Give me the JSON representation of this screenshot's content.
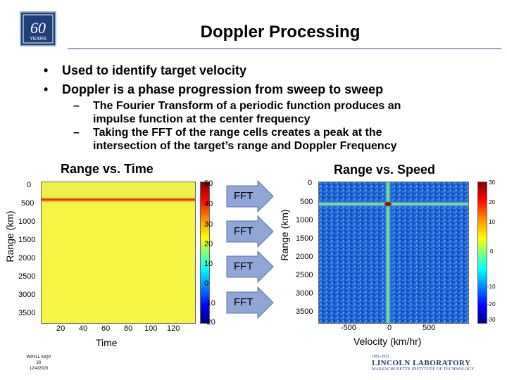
{
  "header": {
    "logo_text": "60",
    "logo_sub": "YEARS",
    "title": "Doppler Processing"
  },
  "bullets": [
    {
      "text": "Used to identify target velocity"
    },
    {
      "text": "Doppler is a phase progression from sweep to sweep"
    }
  ],
  "subbullets": [
    {
      "line1": "The Fourier Transform of a periodic function produces an",
      "line2": "impulse function at the center frequency"
    },
    {
      "line1": "Taking the FFT of the range cells creates a peak at the",
      "line2": "intersection of the target’s range and Doppler Frequency"
    }
  ],
  "fft_labels": [
    "FFT",
    "FFT",
    "FFT",
    "FFT"
  ],
  "chart_data": [
    {
      "type": "heatmap",
      "title": "Range vs. Time",
      "xlabel": "Time",
      "ylabel": "Range (km)",
      "x_ticks": [
        "20",
        "40",
        "60",
        "80",
        "100",
        "120"
      ],
      "y_ticks": [
        "0",
        "500",
        "1000",
        "1500",
        "2000",
        "2500",
        "3000",
        "3500"
      ],
      "xlim": [
        0,
        128
      ],
      "ylim": [
        0,
        3800
      ],
      "colorbar_ticks": [
        "50",
        "40",
        "30",
        "20",
        "10",
        "0",
        "-10",
        "-20"
      ],
      "colorbar_range": [
        -20,
        50
      ],
      "features": [
        {
          "description": "horizontal line at range",
          "range": 600
        }
      ]
    },
    {
      "type": "heatmap",
      "title": "Range vs. Speed",
      "xlabel": "Velocity (km/hr)",
      "ylabel": "Range (km)",
      "x_ticks": [
        "-500",
        "0",
        "500"
      ],
      "y_ticks": [
        "0",
        "500",
        "1000",
        "1500",
        "2000",
        "2500",
        "3000",
        "3500"
      ],
      "xlim": [
        -800,
        800
      ],
      "ylim": [
        0,
        3800
      ],
      "colorbar_ticks": [
        "30",
        "20",
        "10",
        "0",
        "-10",
        "-20",
        "-30"
      ],
      "colorbar_range": [
        -30,
        30
      ],
      "peak": {
        "velocity": 0,
        "range": 600
      }
    }
  ],
  "footer": {
    "left_line1": "WPI/LL MQP",
    "left_line2": "20",
    "left_line3": "12/4/2020",
    "lab_years": "1951–2011",
    "lab_name": "LINCOLN LABORATORY",
    "lab_sub": "MASSACHUSETTS INSTITUTE OF TECHNOLOGY"
  },
  "colors": {
    "rule": "#8fa6c8",
    "fft_arrow": "#8fa6d6",
    "logo_blue": "#1f3f7a",
    "lab_navy": "#1d3b6e"
  }
}
